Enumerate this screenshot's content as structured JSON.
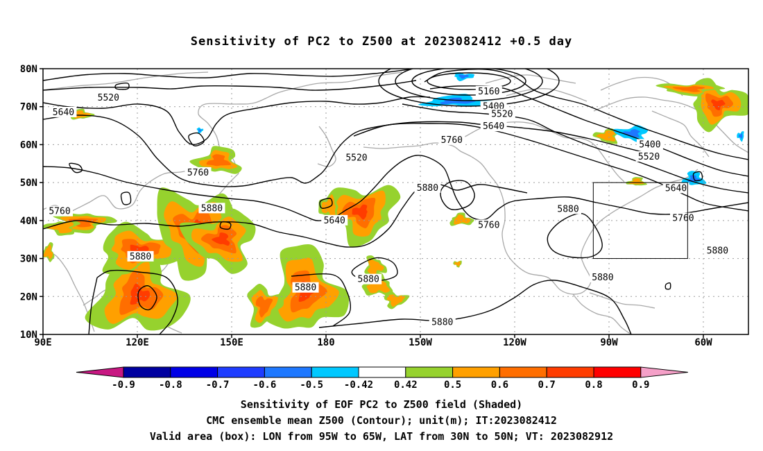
{
  "title": "Sensitivity of PC2 to Z500 at 2023082412 +0.5 day",
  "lat_labels": [
    "80N",
    "70N",
    "60N",
    "50N",
    "40N",
    "30N",
    "20N",
    "10N"
  ],
  "lon_labels": [
    "90E",
    "120E",
    "150E",
    "180",
    "150W",
    "120W",
    "90W",
    "60W"
  ],
  "contour_labels": [
    {
      "text": "5520",
      "lon": 110.8,
      "lat": 72.3
    },
    {
      "text": "5640",
      "lon": 96.5,
      "lat": 68.5
    },
    {
      "text": "5160",
      "lon": -128.2,
      "lat": 74.0
    },
    {
      "text": "5400",
      "lon": -126.7,
      "lat": 70.0
    },
    {
      "text": "5520",
      "lon": -124.0,
      "lat": 68.0
    },
    {
      "text": "5640",
      "lon": -126.7,
      "lat": 64.8
    },
    {
      "text": "5760",
      "lon": -140.0,
      "lat": 61.2
    },
    {
      "text": "5520",
      "lon": -170.3,
      "lat": 56.5
    },
    {
      "text": "5400",
      "lon": -77.0,
      "lat": 60.0
    },
    {
      "text": "5520",
      "lon": -77.3,
      "lat": 56.8
    },
    {
      "text": "5760",
      "lon": 139.3,
      "lat": 52.6
    },
    {
      "text": "5880",
      "lon": 143.7,
      "lat": 43.2
    },
    {
      "text": "5880",
      "lon": -147.7,
      "lat": 48.6
    },
    {
      "text": "5640",
      "lon": -177.3,
      "lat": 40.0
    },
    {
      "text": "5760",
      "lon": -128.2,
      "lat": 38.8
    },
    {
      "text": "5880",
      "lon": -103.0,
      "lat": 43.0
    },
    {
      "text": "5640",
      "lon": -68.7,
      "lat": 48.5
    },
    {
      "text": "5760",
      "lon": -66.4,
      "lat": 40.6
    },
    {
      "text": "5760",
      "lon": 95.3,
      "lat": 42.4
    },
    {
      "text": "5880",
      "lon": -55.5,
      "lat": 32.0
    },
    {
      "text": "5880",
      "lon": 121.0,
      "lat": 30.5
    },
    {
      "text": "5880",
      "lon": 173.5,
      "lat": 22.3
    },
    {
      "text": "5880",
      "lon": -166.5,
      "lat": 24.5
    },
    {
      "text": "5880",
      "lon": -92.0,
      "lat": 25.0
    },
    {
      "text": "5880",
      "lon": -143.0,
      "lat": 13.2
    }
  ],
  "valid_box": {
    "lon_west": -95,
    "lon_east": -65,
    "lat_south": 30,
    "lat_north": 50
  },
  "colorbar": {
    "labels": [
      "-0.9",
      "-0.8",
      "-0.7",
      "-0.6",
      "-0.5",
      "-0.42",
      "0.42",
      "0.5",
      "0.6",
      "0.7",
      "0.8",
      "0.9"
    ],
    "colors": [
      "#c81882",
      "#0000a0",
      "#0000e6",
      "#1e3cff",
      "#1e78ff",
      "#00c8ff",
      "#ffffff",
      "#96d22e",
      "#ffa000",
      "#ff6e00",
      "#ff3c00",
      "#ff0000",
      "#f5a0c8"
    ]
  },
  "shading_colors": {
    "positive_low": "#96d22e",
    "positive_mid": "#ffa000",
    "positive_high": "#ff6e00",
    "positive_max": "#ff3c00",
    "negative_low": "#00c8ff",
    "negative_mid": "#1e78ff"
  },
  "captions": {
    "line1": "Sensitivity of EOF PC2 to Z500 field (Shaded)",
    "line2": "CMC ensemble mean Z500 (Contour); unit(m); IT:2023082412",
    "line3": "Valid area (box): LON from 95W to 65W, LAT from 30N to 50N; VT: 2023082912"
  }
}
